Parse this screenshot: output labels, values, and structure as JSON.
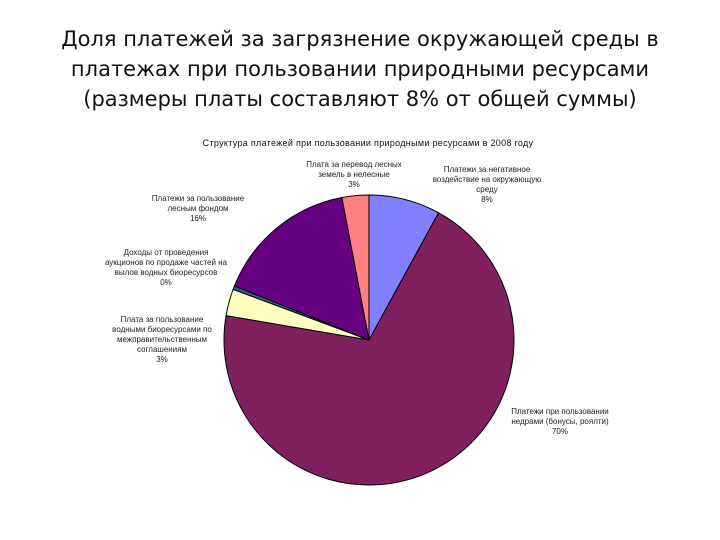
{
  "slide": {
    "title_lines": [
      "Доля платежей за загрязнение окружающей среды в",
      "платежах при пользовании природными ресурсами",
      "(размеры платы составляют 8% от общей суммы)"
    ]
  },
  "chart_data": {
    "type": "pie",
    "title": "Структура платежей при пользовании природными ресурсами в 2008 году",
    "slices": [
      {
        "label_lines": [
          "Платежи за негативное",
          "воздействие на окружающую",
          "среду"
        ],
        "percent_label": "8%",
        "value": 8,
        "color": "#8080ff"
      },
      {
        "label_lines": [
          "Платежи при пользовании",
          "недрами (бонусы, роялти)"
        ],
        "percent_label": "70%",
        "value": 70,
        "color": "#80205e"
      },
      {
        "label_lines": [
          "Плата за пользование",
          "водными биоресурсами по",
          "межправительственным",
          "соглашениям"
        ],
        "percent_label": "3%",
        "value": 3,
        "color": "#ffffc0"
      },
      {
        "label_lines": [
          "Доходы от проведения",
          "аукционов по продаже частей на",
          "вылов водных биоресурсов"
        ],
        "percent_label": "0%",
        "value": 0.4,
        "color": "#2f5f8f"
      },
      {
        "label_lines": [
          "Платежи за пользование",
          "лесным фондом"
        ],
        "percent_label": "16%",
        "value": 16,
        "color": "#660080"
      },
      {
        "label_lines": [
          "Плата за перевод лесных",
          "земель в нелесные"
        ],
        "percent_label": "3%",
        "value": 3,
        "color": "#ff8080"
      }
    ]
  }
}
